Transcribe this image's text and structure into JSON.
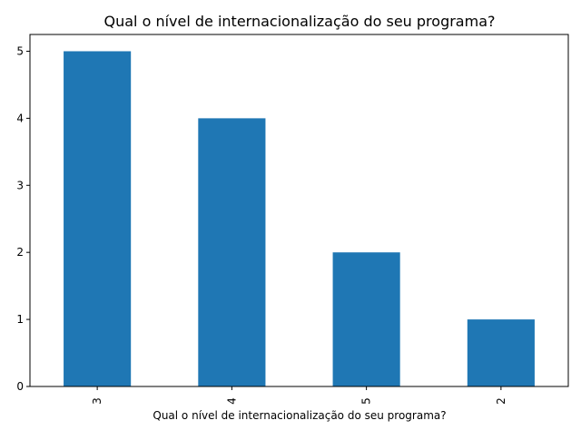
{
  "chart_data": {
    "type": "bar",
    "title": "Qual o nível de internacionalização do seu programa?",
    "xlabel": "Qual o nível de internacionalização do seu programa?",
    "ylabel": "",
    "categories": [
      "3",
      "4",
      "5",
      "2"
    ],
    "values": [
      5,
      4,
      2,
      1
    ],
    "ylim": [
      0,
      5.25
    ],
    "yticks": [
      0,
      1,
      2,
      3,
      4,
      5
    ],
    "grid": false,
    "legend": "none",
    "bar_color": "#1f77b4",
    "x_tick_rotation": 90
  }
}
